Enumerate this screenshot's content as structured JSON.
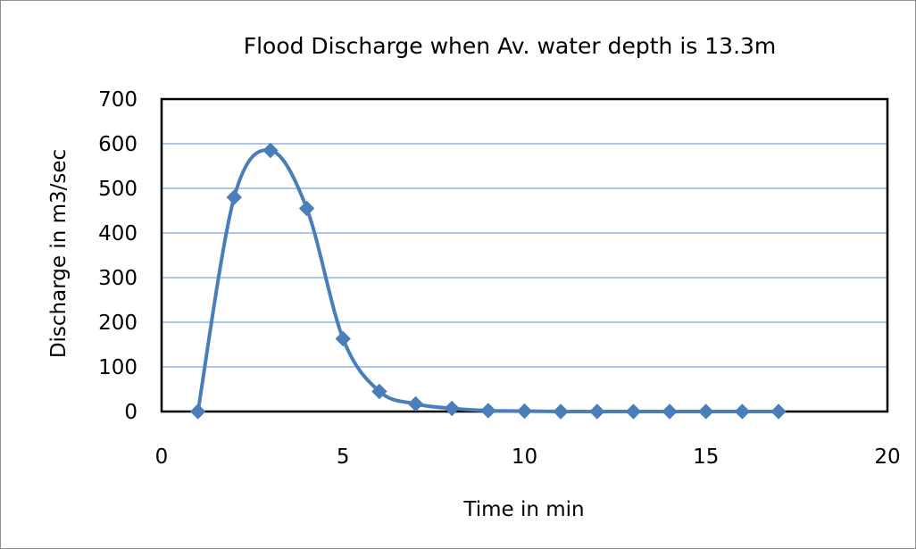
{
  "chart_data": {
    "type": "scatter",
    "title": "Flood Discharge when Av. water depth is 13.3m",
    "xlabel": "Time in min",
    "ylabel": "Discharge in m3/sec",
    "xlim": [
      0,
      20
    ],
    "ylim": [
      0,
      700
    ],
    "xticks": [
      0,
      5,
      10,
      15,
      20
    ],
    "yticks": [
      0,
      100,
      200,
      300,
      400,
      500,
      600,
      700
    ],
    "grid": "horizontal",
    "legend": "none",
    "smooth_lines": true,
    "marker": "diamond",
    "colors": {
      "series": "#4a7ebb",
      "gridline": "#8eb4e3",
      "plot_border": "#000000"
    },
    "series": [
      {
        "x": [
          1,
          2,
          3,
          4,
          5,
          6,
          7,
          8,
          9,
          10,
          11,
          12,
          13,
          14,
          15,
          16,
          17
        ],
        "y": [
          0,
          480,
          585,
          455,
          163,
          45,
          17,
          7,
          2,
          1,
          0,
          0,
          0,
          0,
          0,
          0,
          0
        ]
      }
    ]
  }
}
